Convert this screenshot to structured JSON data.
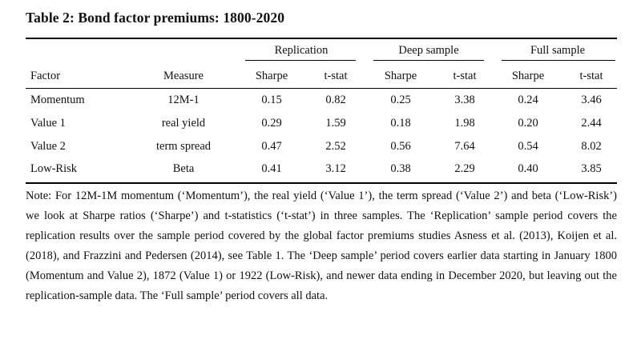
{
  "title": "Table 2: Bond factor premiums: 1800-2020",
  "groups": [
    "Replication",
    "Deep sample",
    "Full sample"
  ],
  "columns": [
    "Factor",
    "Measure",
    "Sharpe",
    "t-stat",
    "Sharpe",
    "t-stat",
    "Sharpe",
    "t-stat"
  ],
  "rows": [
    [
      "Momentum",
      "12M-1",
      "0.15",
      "0.82",
      "0.25",
      "3.38",
      "0.24",
      "3.46"
    ],
    [
      "Value 1",
      "real yield",
      "0.29",
      "1.59",
      "0.18",
      "1.98",
      "0.20",
      "2.44"
    ],
    [
      "Value 2",
      "term spread",
      "0.47",
      "2.52",
      "0.56",
      "7.64",
      "0.54",
      "8.02"
    ],
    [
      "Low-Risk",
      "Beta",
      "0.41",
      "3.12",
      "0.38",
      "2.29",
      "0.40",
      "3.85"
    ]
  ],
  "note": "Note: For 12M-1M momentum (‘Momentum’), the real yield (‘Value 1’), the term spread (‘Value 2’) and beta (‘Low-Risk’) we look at Sharpe ratios (‘Sharpe’) and t-statistics (‘t-stat’) in three samples. The ‘Replication’ sample period covers the replication results over the sample period covered by the global factor premiums studies Asness et al. (2013), Koijen et al. (2018), and Frazzini and Pedersen (2014), see Table 1. The ‘Deep sample’ period covers earlier data starting in January 1800 (Momentum and Value 2), 1872 (Value 1) or 1922 (Low-Risk), and newer data ending in December 2020, but leaving out the replication-sample data. The ‘Full sample’ period covers all data."
}
